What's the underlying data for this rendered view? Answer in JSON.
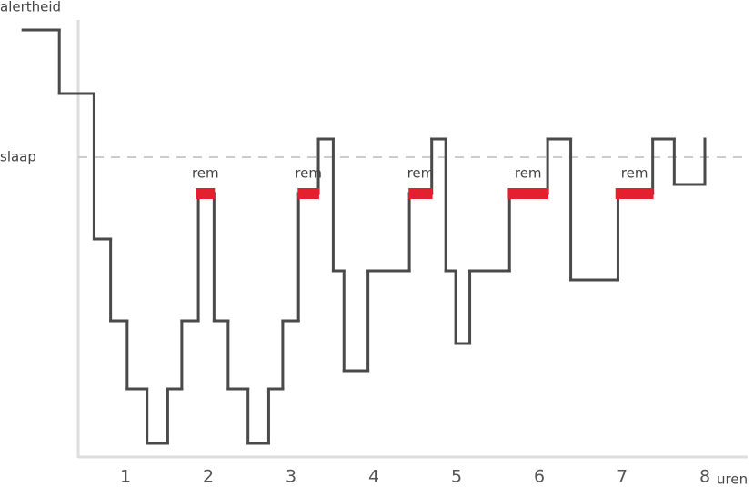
{
  "chart_data": {
    "type": "step",
    "y_label": "alertheid",
    "x_label": "uren",
    "xlim": [
      -0.3,
      8.5
    ],
    "xticks": [
      1,
      2,
      3,
      4,
      5,
      6,
      7,
      8
    ],
    "ylim": [
      0,
      48
    ],
    "series": [
      {
        "color": "#4a4a4a",
        "x": [
          -0.24,
          0.2,
          0.62,
          0.82,
          1.02,
          1.26,
          1.51,
          1.68,
          1.88,
          2.07,
          2.24,
          2.48,
          2.73,
          2.9,
          3.09,
          3.33,
          3.51,
          3.64,
          3.93,
          4.43,
          4.7,
          4.87,
          4.99,
          5.16,
          5.64,
          6.1,
          6.38,
          6.95,
          7.37,
          7.63,
          8.0
        ],
        "values": [
          47,
          40,
          24,
          15,
          7.5,
          1.5,
          7.5,
          15,
          29,
          15,
          7.5,
          1.5,
          7.5,
          15,
          29,
          35,
          20.5,
          9.5,
          20.5,
          29,
          35,
          20.5,
          12.5,
          20.5,
          29,
          35,
          19.5,
          29,
          35,
          30,
          35
        ]
      }
    ],
    "reference_line": {
      "value": 33,
      "label": "slaap",
      "color": "#cccccc"
    },
    "rem_periods": {
      "color": "#e5202e",
      "items": [
        {
          "label": "rem",
          "start": 1.85,
          "end": 2.08,
          "level": 29
        },
        {
          "label": "rem",
          "start": 3.08,
          "end": 3.34,
          "level": 29
        },
        {
          "label": "rem",
          "start": 4.42,
          "end": 4.71,
          "level": 29
        },
        {
          "label": "rem",
          "start": 5.62,
          "end": 6.11,
          "level": 29
        },
        {
          "label": "rem",
          "start": 6.92,
          "end": 7.38,
          "level": 29
        }
      ]
    }
  }
}
